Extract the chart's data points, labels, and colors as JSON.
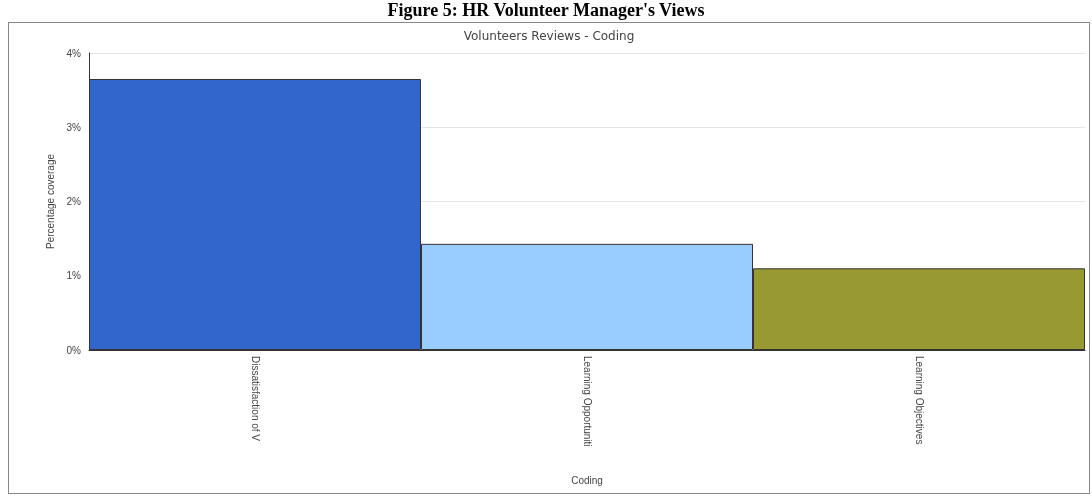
{
  "chart_data": {
    "type": "bar",
    "title": "Figure 5: HR Volunteer Manager's Views",
    "subtitle": "Volunteers Reviews - Coding",
    "xlabel": "Coding",
    "ylabel": "Percentage coverage",
    "categories": [
      "Dissatisfaction of V",
      "Learning Opportuniti",
      "Learning Objectives"
    ],
    "values": [
      3.65,
      1.43,
      1.1
    ],
    "colors": [
      "#3366cc",
      "#99ccff",
      "#999933"
    ],
    "ylim": [
      0,
      4
    ],
    "yticks": [
      {
        "value": 0,
        "label": "0%"
      },
      {
        "value": 1,
        "label": "1%"
      },
      {
        "value": 2,
        "label": "2%"
      },
      {
        "value": 3,
        "label": "3%"
      },
      {
        "value": 4,
        "label": "4%"
      }
    ],
    "grid": "y"
  }
}
